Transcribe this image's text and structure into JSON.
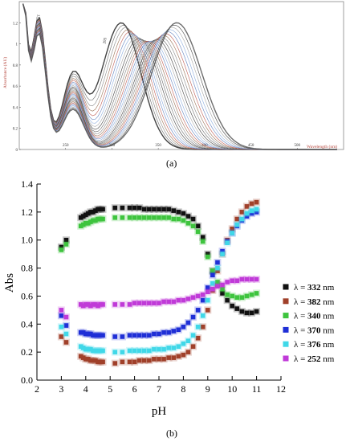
{
  "captions": {
    "a": "(a)",
    "b": "(b)"
  },
  "chart_data": [
    {
      "type": "line",
      "title": "",
      "xlabel": "Wavelength (nm)",
      "ylabel": "Absorbance (AU)",
      "xlim": [
        200,
        550
      ],
      "ylim": [
        0,
        1.4
      ],
      "x_ticks": [
        "250",
        "300",
        "350",
        "400",
        "450",
        "500"
      ],
      "y_ticks": [
        "0",
        "0.2",
        "0.4",
        "0.6",
        "0.8",
        "1",
        "1.2"
      ],
      "peak_labels": [
        {
          "x": 221,
          "y": 1.22,
          "text": "221"
        },
        {
          "x": 293,
          "y": 1.0,
          "text": "293"
        }
      ],
      "colors": [
        "#222222",
        "#555555",
        "#777777",
        "#8a5a3a",
        "#b5443b",
        "#4a6fb5",
        "#7aa0d8",
        "#999999"
      ],
      "family_note_series": {
        "peak1_wavelength": 221,
        "peak2_wavelength_start": 310,
        "peak2_wavelength_end": 370,
        "valley_wavelength": 276,
        "isosbestic_wavelength": 333
      }
    },
    {
      "type": "scatter",
      "title": "",
      "xlabel": "pH",
      "ylabel": "Abs",
      "xlim": [
        2,
        12
      ],
      "ylim": [
        0,
        1.4
      ],
      "x_ticks": [
        "2",
        "3",
        "4",
        "5",
        "6",
        "7",
        "8",
        "9",
        "10",
        "11",
        "12"
      ],
      "y_ticks": [
        "0.0",
        "0.2",
        "0.4",
        "0.6",
        "0.8",
        "1.0",
        "1.2",
        "1.4"
      ],
      "legend": {
        "position": "right",
        "prefix": "λ = ",
        "unit": "nm"
      },
      "series": [
        {
          "name": "332",
          "color": "#111111",
          "x": [
            3.0,
            3.2,
            3.8,
            3.9,
            4.0,
            4.1,
            4.2,
            4.3,
            4.4,
            4.5,
            4.6,
            4.7,
            5.2,
            5.5,
            5.8,
            6.0,
            6.2,
            6.4,
            6.6,
            6.8,
            7.0,
            7.2,
            7.4,
            7.6,
            7.8,
            8.0,
            8.2,
            8.4,
            8.6,
            8.8,
            9.0,
            9.2,
            9.4,
            9.6,
            9.8,
            10.0,
            10.2,
            10.4,
            10.6,
            10.8,
            11.0
          ],
          "y": [
            0.95,
            1.0,
            1.16,
            1.17,
            1.18,
            1.19,
            1.2,
            1.2,
            1.21,
            1.22,
            1.22,
            1.22,
            1.23,
            1.23,
            1.23,
            1.23,
            1.23,
            1.22,
            1.22,
            1.22,
            1.22,
            1.22,
            1.22,
            1.21,
            1.2,
            1.19,
            1.17,
            1.15,
            1.1,
            1.02,
            0.9,
            0.78,
            0.68,
            0.62,
            0.57,
            0.53,
            0.51,
            0.49,
            0.48,
            0.48,
            0.49
          ]
        },
        {
          "name": "382",
          "color": "#a0402a",
          "x": [
            3.0,
            3.2,
            3.8,
            3.9,
            4.0,
            4.1,
            4.2,
            4.3,
            4.4,
            4.5,
            4.6,
            4.7,
            5.2,
            5.5,
            5.8,
            6.0,
            6.2,
            6.4,
            6.6,
            6.8,
            7.0,
            7.2,
            7.4,
            7.6,
            7.8,
            8.0,
            8.2,
            8.4,
            8.6,
            8.8,
            9.0,
            9.2,
            9.4,
            9.6,
            9.8,
            10.0,
            10.2,
            10.4,
            10.6,
            10.8,
            11.0
          ],
          "y": [
            0.31,
            0.27,
            0.17,
            0.16,
            0.15,
            0.15,
            0.14,
            0.14,
            0.14,
            0.13,
            0.13,
            0.13,
            0.12,
            0.13,
            0.13,
            0.13,
            0.14,
            0.14,
            0.14,
            0.15,
            0.15,
            0.15,
            0.16,
            0.16,
            0.17,
            0.18,
            0.2,
            0.24,
            0.3,
            0.38,
            0.5,
            0.64,
            0.78,
            0.9,
            1.0,
            1.08,
            1.15,
            1.2,
            1.24,
            1.26,
            1.27
          ]
        },
        {
          "name": "340",
          "color": "#3ec43e",
          "x": [
            3.0,
            3.2,
            3.8,
            3.9,
            4.0,
            4.1,
            4.2,
            4.3,
            4.4,
            4.5,
            4.6,
            4.7,
            5.2,
            5.5,
            5.8,
            6.0,
            6.2,
            6.4,
            6.6,
            6.8,
            7.0,
            7.2,
            7.4,
            7.6,
            7.8,
            8.0,
            8.2,
            8.4,
            8.6,
            8.8,
            9.0,
            9.2,
            9.4,
            9.6,
            9.8,
            10.0,
            10.2,
            10.4,
            10.6,
            10.8,
            11.0
          ],
          "y": [
            0.93,
            0.97,
            1.1,
            1.11,
            1.12,
            1.12,
            1.13,
            1.14,
            1.14,
            1.15,
            1.15,
            1.15,
            1.16,
            1.16,
            1.16,
            1.16,
            1.16,
            1.16,
            1.16,
            1.16,
            1.16,
            1.16,
            1.16,
            1.15,
            1.15,
            1.14,
            1.12,
            1.1,
            1.06,
            0.99,
            0.88,
            0.78,
            0.7,
            0.65,
            0.61,
            0.6,
            0.59,
            0.59,
            0.6,
            0.61,
            0.62
          ]
        },
        {
          "name": "370",
          "color": "#1f2fd6",
          "x": [
            3.0,
            3.2,
            3.8,
            3.9,
            4.0,
            4.1,
            4.2,
            4.3,
            4.4,
            4.5,
            4.6,
            4.7,
            5.2,
            5.5,
            5.8,
            6.0,
            6.2,
            6.4,
            6.6,
            6.8,
            7.0,
            7.2,
            7.4,
            7.6,
            7.8,
            8.0,
            8.2,
            8.4,
            8.6,
            8.8,
            9.0,
            9.2,
            9.4,
            9.6,
            9.8,
            10.0,
            10.2,
            10.4,
            10.6,
            10.8,
            11.0
          ],
          "y": [
            0.46,
            0.39,
            0.34,
            0.34,
            0.33,
            0.33,
            0.33,
            0.32,
            0.32,
            0.32,
            0.32,
            0.32,
            0.31,
            0.31,
            0.32,
            0.32,
            0.32,
            0.32,
            0.32,
            0.33,
            0.33,
            0.34,
            0.34,
            0.35,
            0.36,
            0.38,
            0.41,
            0.45,
            0.5,
            0.57,
            0.66,
            0.75,
            0.84,
            0.92,
            0.99,
            1.05,
            1.1,
            1.14,
            1.17,
            1.19,
            1.2
          ]
        },
        {
          "name": "376",
          "color": "#40d8e8",
          "x": [
            3.0,
            3.2,
            3.8,
            3.9,
            4.0,
            4.1,
            4.2,
            4.3,
            4.4,
            4.5,
            4.6,
            4.7,
            5.2,
            5.5,
            5.8,
            6.0,
            6.2,
            6.4,
            6.6,
            6.8,
            7.0,
            7.2,
            7.4,
            7.6,
            7.8,
            8.0,
            8.2,
            8.4,
            8.6,
            8.8,
            9.0,
            9.2,
            9.4,
            9.6,
            9.8,
            10.0,
            10.2,
            10.4,
            10.6,
            10.8,
            11.0
          ],
          "y": [
            0.38,
            0.33,
            0.24,
            0.23,
            0.22,
            0.22,
            0.22,
            0.21,
            0.21,
            0.21,
            0.21,
            0.21,
            0.2,
            0.2,
            0.21,
            0.21,
            0.21,
            0.21,
            0.21,
            0.22,
            0.22,
            0.22,
            0.23,
            0.23,
            0.24,
            0.26,
            0.28,
            0.32,
            0.38,
            0.46,
            0.57,
            0.69,
            0.8,
            0.9,
            0.98,
            1.05,
            1.11,
            1.15,
            1.19,
            1.21,
            1.22
          ]
        },
        {
          "name": "252",
          "color": "#c03ad8",
          "x": [
            3.0,
            3.2,
            3.8,
            3.9,
            4.0,
            4.1,
            4.2,
            4.3,
            4.4,
            4.5,
            4.6,
            4.7,
            5.2,
            5.5,
            5.8,
            6.0,
            6.2,
            6.4,
            6.6,
            6.8,
            7.0,
            7.2,
            7.4,
            7.6,
            7.8,
            8.0,
            8.2,
            8.4,
            8.6,
            8.8,
            9.0,
            9.2,
            9.4,
            9.6,
            9.8,
            10.0,
            10.2,
            10.4,
            10.6,
            10.8,
            11.0
          ],
          "y": [
            0.5,
            0.45,
            0.54,
            0.53,
            0.54,
            0.54,
            0.53,
            0.54,
            0.54,
            0.53,
            0.54,
            0.54,
            0.54,
            0.54,
            0.54,
            0.55,
            0.55,
            0.55,
            0.55,
            0.55,
            0.55,
            0.56,
            0.56,
            0.56,
            0.57,
            0.57,
            0.58,
            0.59,
            0.6,
            0.61,
            0.63,
            0.65,
            0.67,
            0.68,
            0.7,
            0.71,
            0.71,
            0.72,
            0.72,
            0.72,
            0.72
          ]
        }
      ]
    }
  ]
}
